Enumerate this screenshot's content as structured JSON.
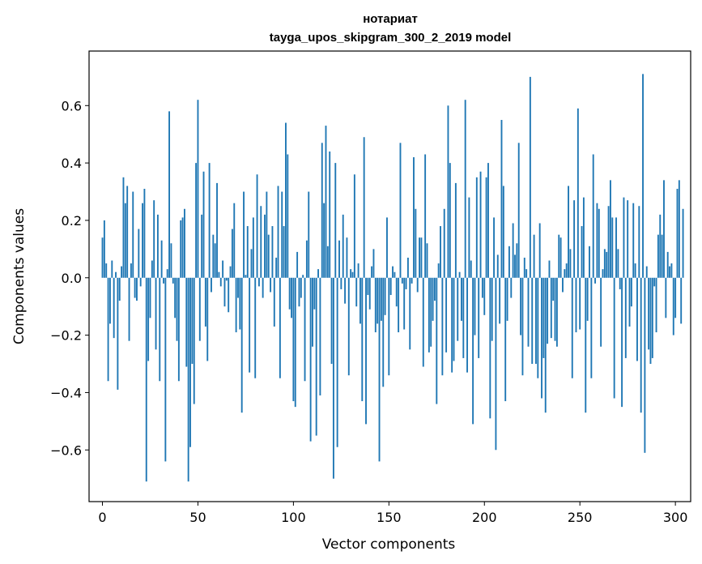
{
  "chart_data": {
    "type": "bar",
    "title": "нотариат",
    "subtitle": "tayga_upos_skipgram_300_2_2019 model",
    "xlabel": "Vector components",
    "ylabel": "Components values",
    "xlim": [
      -7,
      308
    ],
    "ylim": [
      -0.78,
      0.79
    ],
    "xticks": [
      0,
      50,
      100,
      150,
      200,
      250,
      300
    ],
    "yticks": [
      -0.6,
      -0.4,
      -0.2,
      0.0,
      0.2,
      0.4,
      0.6
    ],
    "ytick_labels": [
      "−0.6",
      "−0.4",
      "−0.2",
      "0.0",
      "0.2",
      "0.4",
      "0.6"
    ],
    "grid": false,
    "bar_color": "#1f77b4",
    "values": [
      0.14,
      0.2,
      0.05,
      -0.36,
      -0.16,
      0.06,
      -0.21,
      0.02,
      -0.39,
      -0.08,
      0.04,
      0.35,
      0.26,
      0.32,
      -0.22,
      0.05,
      0.3,
      -0.07,
      -0.08,
      0.17,
      -0.03,
      0.26,
      0.31,
      -0.71,
      -0.29,
      -0.14,
      0.06,
      0.27,
      -0.25,
      0.22,
      -0.36,
      0.13,
      -0.02,
      -0.64,
      0.03,
      0.58,
      0.12,
      -0.02,
      -0.14,
      -0.22,
      -0.36,
      0.2,
      0.21,
      0.24,
      -0.31,
      -0.71,
      -0.59,
      -0.3,
      -0.44,
      0.4,
      0.62,
      -0.22,
      0.22,
      0.37,
      -0.17,
      -0.29,
      0.4,
      -0.05,
      0.15,
      0.12,
      0.33,
      0.02,
      -0.03,
      0.06,
      -0.1,
      -0.01,
      -0.12,
      0.04,
      0.17,
      0.26,
      -0.19,
      -0.07,
      -0.18,
      -0.47,
      0.3,
      0.01,
      0.18,
      -0.33,
      0.1,
      0.21,
      -0.35,
      0.36,
      -0.03,
      0.25,
      -0.07,
      0.22,
      0.3,
      0.15,
      -0.05,
      0.18,
      -0.17,
      0.07,
      0.32,
      -0.35,
      0.3,
      0.18,
      0.54,
      0.43,
      -0.11,
      -0.14,
      -0.43,
      -0.45,
      0.09,
      -0.1,
      -0.07,
      0.01,
      -0.36,
      0.13,
      0.3,
      -0.57,
      -0.24,
      -0.11,
      -0.55,
      0.03,
      -0.41,
      0.47,
      0.26,
      0.53,
      0.11,
      0.44,
      -0.3,
      -0.7,
      0.4,
      -0.59,
      0.13,
      -0.04,
      0.22,
      -0.09,
      0.14,
      -0.34,
      0.03,
      0.02,
      0.36,
      -0.1,
      0.05,
      -0.16,
      -0.43,
      0.49,
      -0.51,
      -0.06,
      -0.11,
      0.04,
      0.1,
      -0.19,
      -0.16,
      -0.64,
      -0.15,
      -0.38,
      -0.13,
      0.21,
      -0.34,
      -0.06,
      0.04,
      0.02,
      -0.1,
      -0.19,
      0.47,
      -0.02,
      -0.18,
      -0.04,
      0.07,
      -0.25,
      -0.02,
      0.42,
      0.24,
      -0.05,
      0.14,
      0.14,
      -0.31,
      0.43,
      0.12,
      -0.26,
      -0.24,
      -0.15,
      -0.08,
      -0.44,
      0.05,
      0.18,
      -0.34,
      0.24,
      -0.26,
      0.6,
      0.4,
      -0.33,
      -0.29,
      0.33,
      -0.22,
      0.02,
      -0.15,
      -0.28,
      0.62,
      -0.33,
      0.28,
      0.06,
      -0.51,
      -0.2,
      0.35,
      -0.28,
      0.37,
      -0.07,
      -0.13,
      0.35,
      0.4,
      -0.49,
      -0.22,
      0.21,
      -0.6,
      0.08,
      -0.16,
      0.55,
      0.32,
      -0.43,
      -0.15,
      0.11,
      -0.07,
      0.19,
      0.08,
      0.12,
      0.47,
      -0.2,
      -0.34,
      0.07,
      0.03,
      -0.24,
      0.7,
      -0.3,
      0.15,
      -0.3,
      -0.35,
      0.19,
      -0.42,
      -0.28,
      -0.47,
      -0.23,
      0.06,
      -0.21,
      -0.08,
      -0.22,
      -0.24,
      0.15,
      0.14,
      -0.05,
      0.03,
      0.05,
      0.32,
      0.1,
      -0.35,
      0.27,
      -0.19,
      0.59,
      -0.18,
      0.18,
      0.28,
      -0.47,
      -0.15,
      0.11,
      -0.35,
      0.43,
      -0.02,
      0.26,
      0.24,
      -0.24,
      0.03,
      0.1,
      0.09,
      0.25,
      0.34,
      0.21,
      -0.42,
      0.21,
      0.1,
      -0.04,
      -0.45,
      0.28,
      -0.28,
      0.27,
      -0.17,
      -0.1,
      0.26,
      0.05,
      -0.29,
      0.25,
      -0.47,
      0.71,
      -0.61,
      0.04,
      -0.25,
      -0.3,
      -0.28,
      -0.03,
      -0.19,
      0.15,
      0.22,
      0.15,
      0.34,
      -0.14,
      0.09,
      0.04,
      0.05,
      -0.2,
      -0.14,
      0.31,
      0.34,
      -0.16,
      0.24
    ]
  }
}
